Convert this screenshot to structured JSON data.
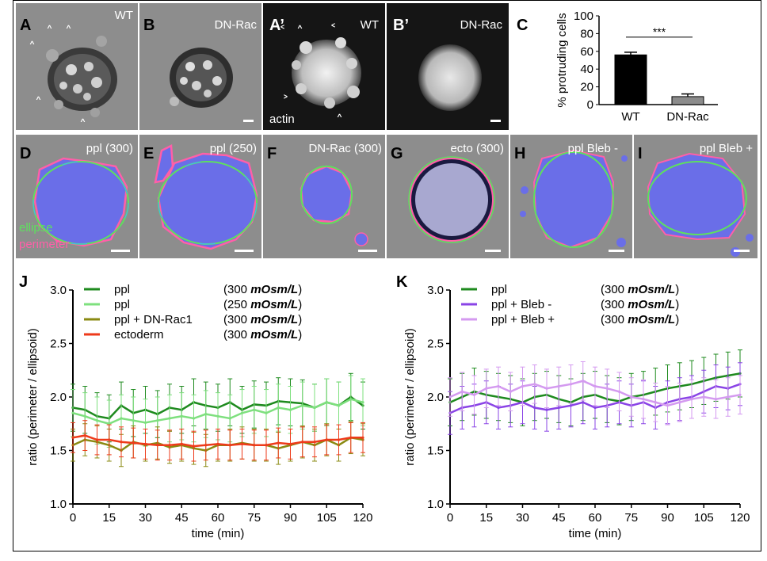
{
  "panels_top": {
    "A": {
      "label": "A",
      "title": "WT"
    },
    "B": {
      "label": "B",
      "title": "DN-Rac"
    },
    "A2": {
      "label": "A’",
      "title": "WT",
      "stain": "actin"
    },
    "B2": {
      "label": "B’",
      "title": "DN-Rac"
    },
    "C": {
      "label": "C"
    }
  },
  "panels_mid": {
    "D": {
      "label": "D",
      "title": "ppl (300)",
      "legend_ellipse": "ellipse",
      "legend_perimeter": "perimeter"
    },
    "E": {
      "label": "E",
      "title": "ppl (250)"
    },
    "F": {
      "label": "F",
      "title": "DN-Rac (300)"
    },
    "G": {
      "label": "G",
      "title": "ecto (300)"
    },
    "H": {
      "label": "H",
      "title": "ppl Bleb -"
    },
    "I": {
      "label": "I",
      "title": "ppl Bleb +"
    }
  },
  "colors": {
    "ellipse": "#5ee05e",
    "perimeter": "#ff5fa8",
    "cell_fill": "#6a6ee8",
    "ppl300": "#1e8a1e",
    "ppl250": "#7ee07e",
    "dnrac": "#8a8a12",
    "ecto": "#ee3a1a",
    "bleb_minus": "#8a44e6",
    "bleb_plus": "#d49af0"
  },
  "chart_data": [
    {
      "panel": "C",
      "type": "bar",
      "ylabel": "% protruding cells",
      "categories": [
        "WT",
        "DN-Rac"
      ],
      "values": [
        56,
        9
      ],
      "errors": [
        3,
        3
      ],
      "ylim": [
        0,
        100
      ],
      "yticks": [
        0,
        20,
        40,
        60,
        80,
        100
      ],
      "significance": "***"
    },
    {
      "panel": "J",
      "label": "J",
      "type": "line",
      "xlabel": "time (min)",
      "ylabel": "ratio (perimeter / ellipsoid)",
      "xlim": [
        0,
        120
      ],
      "ylim": [
        1.0,
        3.0
      ],
      "xticks": [
        0,
        15,
        30,
        45,
        60,
        75,
        90,
        105,
        120
      ],
      "yticks": [
        "1.0",
        "1.5",
        "2.0",
        "2.5",
        "3.0"
      ],
      "series": [
        {
          "name": "ppl",
          "condition": "(300 mOsm/L)",
          "unit_plain": "(300 ",
          "unit_em": "mOsm/L",
          "unit_close": ")",
          "x": [
            0,
            5,
            10,
            15,
            20,
            25,
            30,
            35,
            40,
            45,
            50,
            55,
            60,
            65,
            70,
            75,
            80,
            85,
            90,
            95,
            100,
            105,
            110,
            115,
            120
          ],
          "values": [
            1.9,
            1.88,
            1.82,
            1.8,
            1.92,
            1.85,
            1.88,
            1.84,
            1.9,
            1.88,
            1.95,
            1.92,
            1.9,
            1.95,
            1.88,
            1.93,
            1.92,
            1.96,
            1.95,
            1.94,
            1.9,
            1.95,
            1.92,
            2.0,
            1.92
          ],
          "errors": 0.22
        },
        {
          "name": "ppl",
          "condition": "(250 mOsm/L)",
          "unit_plain": "(250 ",
          "unit_em": "mOsm/L",
          "unit_close": ")",
          "x": [
            0,
            5,
            10,
            15,
            20,
            25,
            30,
            35,
            40,
            45,
            50,
            55,
            60,
            65,
            70,
            75,
            80,
            85,
            90,
            95,
            100,
            105,
            110,
            115,
            120
          ],
          "values": [
            1.85,
            1.82,
            1.78,
            1.75,
            1.8,
            1.78,
            1.76,
            1.78,
            1.8,
            1.82,
            1.8,
            1.84,
            1.82,
            1.8,
            1.85,
            1.88,
            1.85,
            1.9,
            1.88,
            1.92,
            1.9,
            1.95,
            1.92,
            1.98,
            1.95
          ],
          "errors": 0.22
        },
        {
          "name": "ppl + DN-Rac1",
          "condition": "(300 mOsm/L)",
          "unit_plain": "(300 ",
          "unit_em": "mOsm/L",
          "unit_close": ")",
          "x": [
            0,
            5,
            10,
            15,
            20,
            25,
            30,
            35,
            40,
            45,
            50,
            55,
            60,
            65,
            70,
            75,
            80,
            85,
            90,
            95,
            100,
            105,
            110,
            115,
            120
          ],
          "values": [
            1.55,
            1.6,
            1.58,
            1.55,
            1.5,
            1.58,
            1.55,
            1.57,
            1.53,
            1.55,
            1.52,
            1.5,
            1.55,
            1.55,
            1.57,
            1.55,
            1.55,
            1.52,
            1.55,
            1.58,
            1.55,
            1.6,
            1.55,
            1.62,
            1.6
          ],
          "errors": 0.15
        },
        {
          "name": "ectoderm",
          "condition": "(300 mOsm/L)",
          "unit_plain": "(300 ",
          "unit_em": "mOsm/L",
          "unit_close": ")",
          "x": [
            0,
            5,
            10,
            15,
            20,
            25,
            30,
            35,
            40,
            45,
            50,
            55,
            60,
            65,
            70,
            75,
            80,
            85,
            90,
            95,
            100,
            105,
            110,
            115,
            120
          ],
          "values": [
            1.62,
            1.64,
            1.6,
            1.6,
            1.58,
            1.57,
            1.56,
            1.55,
            1.55,
            1.56,
            1.54,
            1.55,
            1.56,
            1.55,
            1.56,
            1.55,
            1.55,
            1.57,
            1.56,
            1.58,
            1.58,
            1.6,
            1.6,
            1.62,
            1.62
          ],
          "errors": 0.14
        }
      ]
    },
    {
      "panel": "K",
      "label": "K",
      "type": "line",
      "xlabel": "time (min)",
      "ylabel": "ratio (perimeter / ellipsoid)",
      "xlim": [
        0,
        120
      ],
      "ylim": [
        1.0,
        3.0
      ],
      "xticks": [
        0,
        15,
        30,
        45,
        60,
        75,
        90,
        105,
        120
      ],
      "yticks": [
        "1.0",
        "1.5",
        "2.0",
        "2.5",
        "3.0"
      ],
      "series": [
        {
          "name": "ppl",
          "condition": "(300 mOsm/L)",
          "unit_plain": "(300 ",
          "unit_em": "mOsm/L",
          "unit_close": ")",
          "x": [
            0,
            5,
            10,
            15,
            20,
            25,
            30,
            35,
            40,
            45,
            50,
            55,
            60,
            65,
            70,
            75,
            80,
            85,
            90,
            95,
            100,
            105,
            110,
            115,
            120
          ],
          "values": [
            1.95,
            2.0,
            2.05,
            2.02,
            2.0,
            1.98,
            1.95,
            2.0,
            2.02,
            1.98,
            1.95,
            2.0,
            2.02,
            1.98,
            1.96,
            2.0,
            2.02,
            2.05,
            2.08,
            2.1,
            2.12,
            2.15,
            2.18,
            2.2,
            2.22
          ],
          "errors": 0.22
        },
        {
          "name": "ppl + Bleb -",
          "condition": "(300 mOsm/L)",
          "unit_plain": "(300 ",
          "unit_em": "mOsm/L",
          "unit_close": ")",
          "x": [
            0,
            5,
            10,
            15,
            20,
            25,
            30,
            35,
            40,
            45,
            50,
            55,
            60,
            65,
            70,
            75,
            80,
            85,
            90,
            95,
            100,
            105,
            110,
            115,
            120
          ],
          "values": [
            1.85,
            1.9,
            1.92,
            1.95,
            1.9,
            1.92,
            1.95,
            1.9,
            1.88,
            1.9,
            1.92,
            1.95,
            1.9,
            1.92,
            1.95,
            1.92,
            1.95,
            1.9,
            1.95,
            1.98,
            2.0,
            2.05,
            2.1,
            2.08,
            2.12
          ],
          "errors": 0.2
        },
        {
          "name": "ppl + Bleb +",
          "condition": "(300 mOsm/L)",
          "unit_plain": "(300 ",
          "unit_em": "mOsm/L",
          "unit_close": ")",
          "x": [
            0,
            5,
            10,
            15,
            20,
            25,
            30,
            35,
            40,
            45,
            50,
            55,
            60,
            65,
            70,
            75,
            80,
            85,
            90,
            95,
            100,
            105,
            110,
            115,
            120
          ],
          "values": [
            2.0,
            2.05,
            2.02,
            2.08,
            2.1,
            2.05,
            2.1,
            2.12,
            2.08,
            2.1,
            2.12,
            2.15,
            2.1,
            2.08,
            2.05,
            2.0,
            1.98,
            1.95,
            1.92,
            1.95,
            1.98,
            2.0,
            1.98,
            2.0,
            2.02
          ],
          "errors": 0.18
        }
      ]
    }
  ]
}
